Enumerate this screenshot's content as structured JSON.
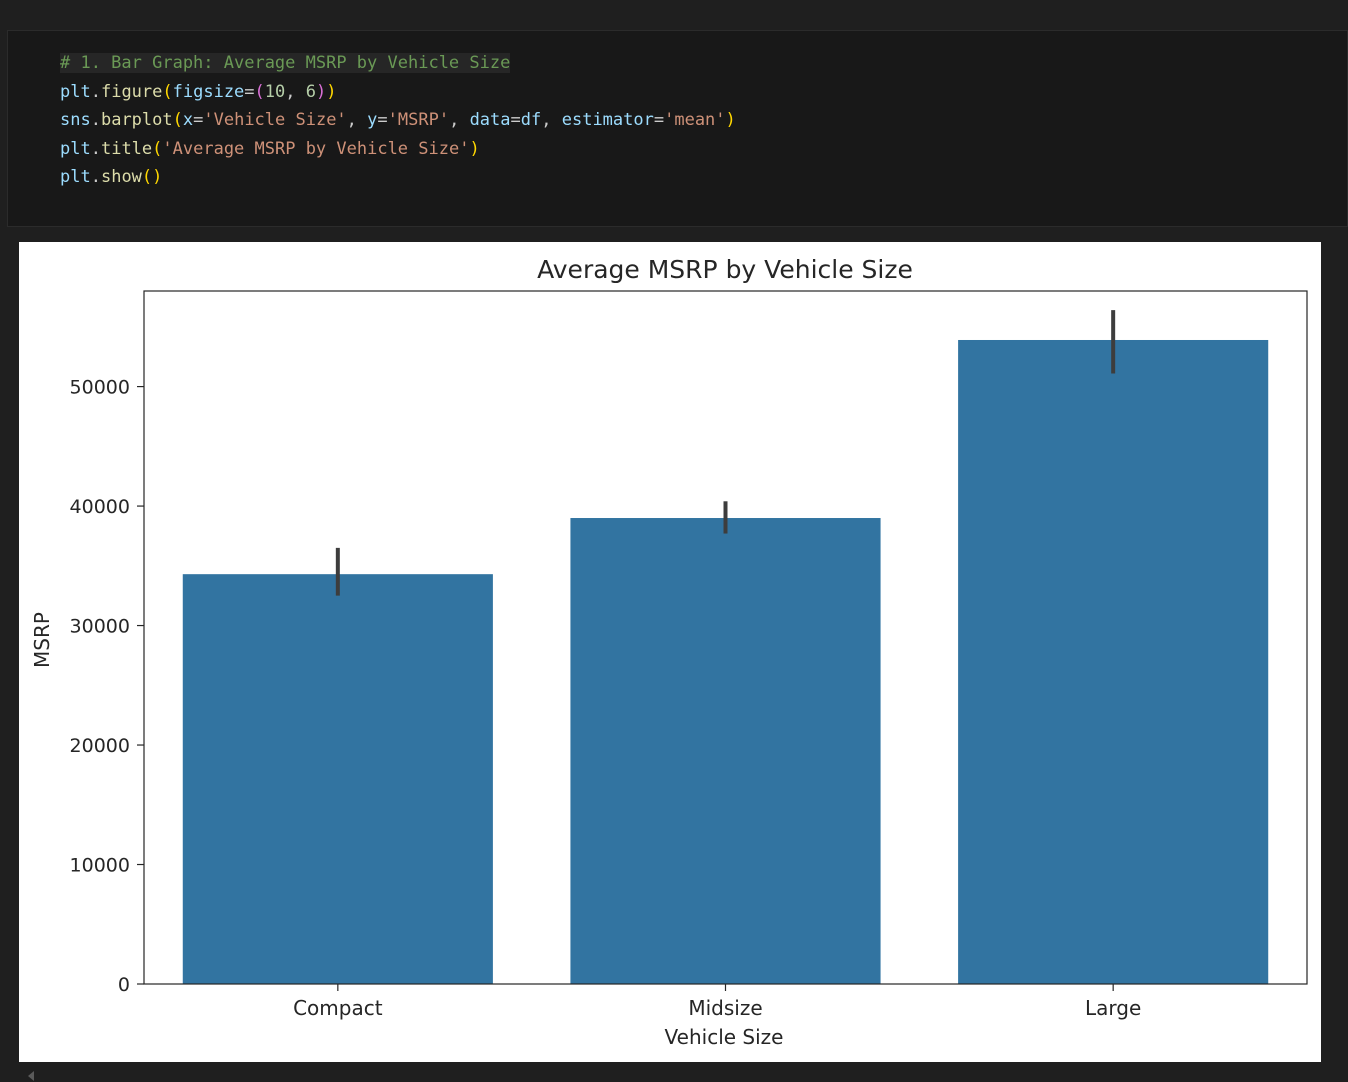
{
  "code": {
    "comment": "# 1. Bar Graph: Average MSRP by Vehicle Size",
    "line2": {
      "obj": "plt",
      "fn": "figure",
      "kw": "figsize",
      "n1": "10",
      "n2": "6"
    },
    "line3": {
      "obj": "sns",
      "fn": "barplot",
      "kx": "x",
      "sx": "'Vehicle Size'",
      "ky": "y",
      "sy": "'MSRP'",
      "kd": "data",
      "vd": "df",
      "ke": "estimator",
      "se": "'mean'"
    },
    "line4": {
      "obj": "plt",
      "fn": "title",
      "st": "'Average MSRP by Vehicle Size'"
    },
    "line5": {
      "obj": "plt",
      "fn": "show"
    }
  },
  "chart_data": {
    "type": "bar",
    "title": "Average MSRP by Vehicle Size",
    "xlabel": "Vehicle Size",
    "ylabel": "MSRP",
    "categories": [
      "Compact",
      "Midsize",
      "Large"
    ],
    "values": [
      34300,
      39000,
      53900
    ],
    "error_low": [
      32500,
      37700,
      51100
    ],
    "error_high": [
      36500,
      40400,
      56400
    ],
    "ylim": [
      0,
      58000
    ],
    "yticks": [
      0,
      10000,
      20000,
      30000,
      40000,
      50000
    ],
    "grid": false,
    "bar_color": "#3274a1",
    "error_color": "#3d3d3d"
  }
}
